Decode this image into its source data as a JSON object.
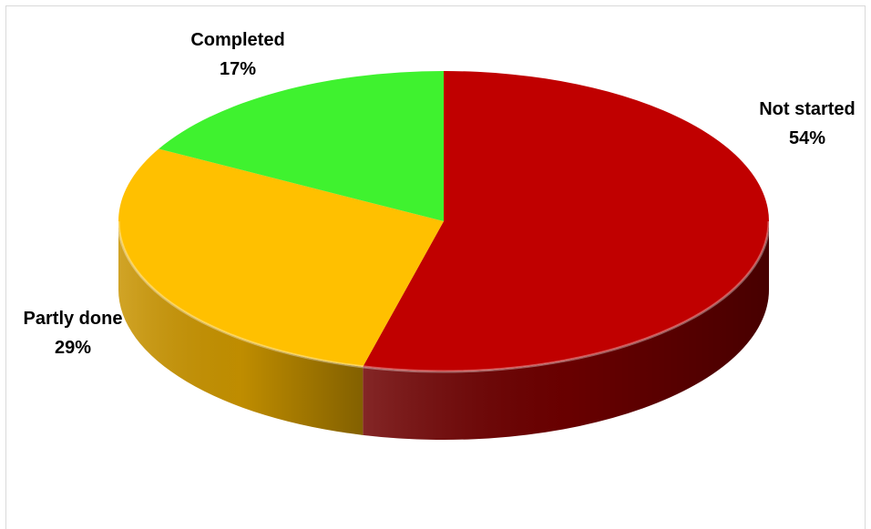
{
  "chart_data": {
    "type": "pie",
    "title": "",
    "slices": [
      {
        "label": "Not started",
        "value": 54,
        "display": "54%",
        "color": "#C00000",
        "side_color": "#6E0000"
      },
      {
        "label": "Partly done",
        "value": 29,
        "display": "29%",
        "color": "#FFC000",
        "side_color": "#C99400"
      },
      {
        "label": "Completed",
        "value": 17,
        "display": "17%",
        "color": "#3FF22F",
        "side_color": "#2BB01F"
      }
    ],
    "legend": "none",
    "style": "3d"
  }
}
